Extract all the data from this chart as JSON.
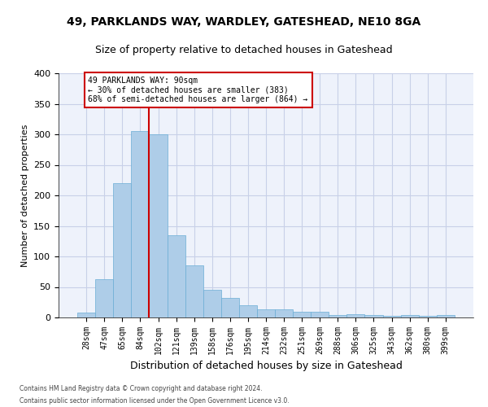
{
  "title1": "49, PARKLANDS WAY, WARDLEY, GATESHEAD, NE10 8GA",
  "title2": "Size of property relative to detached houses in Gateshead",
  "xlabel": "Distribution of detached houses by size in Gateshead",
  "ylabel": "Number of detached properties",
  "categories": [
    "28sqm",
    "47sqm",
    "65sqm",
    "84sqm",
    "102sqm",
    "121sqm",
    "139sqm",
    "158sqm",
    "176sqm",
    "195sqm",
    "214sqm",
    "232sqm",
    "251sqm",
    "269sqm",
    "288sqm",
    "306sqm",
    "325sqm",
    "343sqm",
    "362sqm",
    "380sqm",
    "399sqm"
  ],
  "values": [
    8,
    63,
    220,
    306,
    300,
    135,
    85,
    46,
    32,
    20,
    14,
    13,
    10,
    10,
    4,
    5,
    4,
    3,
    4,
    3,
    4
  ],
  "bar_color": "#aecde8",
  "bar_edge_color": "#6aadd5",
  "vline_x": 3.5,
  "annotation_line1": "49 PARKLANDS WAY: 90sqm",
  "annotation_line2": "← 30% of detached houses are smaller (383)",
  "annotation_line3": "68% of semi-detached houses are larger (864) →",
  "annotation_box_color": "#ffffff",
  "annotation_box_edge": "#cc0000",
  "vline_color": "#cc0000",
  "footer1": "Contains HM Land Registry data © Crown copyright and database right 2024.",
  "footer2": "Contains public sector information licensed under the Open Government Licence v3.0.",
  "ylim": [
    0,
    400
  ],
  "yticks": [
    0,
    50,
    100,
    150,
    200,
    250,
    300,
    350,
    400
  ],
  "grid_color": "#c8d0e8",
  "bg_color": "#eef2fb",
  "title1_fontsize": 10,
  "title2_fontsize": 9,
  "ylabel_fontsize": 8,
  "xlabel_fontsize": 9,
  "tick_fontsize": 7
}
